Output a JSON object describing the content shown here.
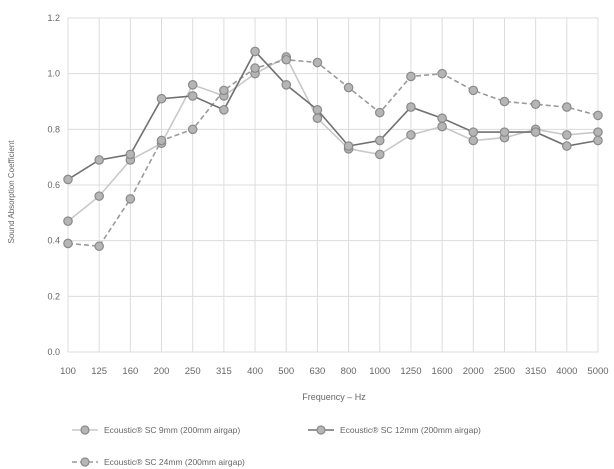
{
  "chart_data": {
    "type": "line",
    "title": "",
    "xlabel": "Frequency – Hz",
    "ylabel": "Sound Absorption Coefficient",
    "categories": [
      "100",
      "125",
      "160",
      "200",
      "250",
      "315",
      "400",
      "500",
      "630",
      "800",
      "1000",
      "1250",
      "1600",
      "2000",
      "2500",
      "3150",
      "4000",
      "5000"
    ],
    "y_ticks": [
      "0.0",
      "0.2",
      "0.4",
      "0.6",
      "0.8",
      "1.0",
      "1.2"
    ],
    "ylim": [
      0,
      1.2
    ],
    "grid": true,
    "legend_position": "bottom",
    "series": [
      {
        "name": "Ecoustic® SC 9mm (200mm airgap)",
        "style": "solid",
        "color": "#c8c8c8",
        "values": [
          0.47,
          0.56,
          0.69,
          0.75,
          0.96,
          0.92,
          1.0,
          1.06,
          0.84,
          0.73,
          0.71,
          0.78,
          0.81,
          0.76,
          0.77,
          0.8,
          0.78,
          0.79
        ]
      },
      {
        "name": "Ecoustic® SC 12mm (200mm airgap)",
        "style": "solid",
        "color": "#707070",
        "values": [
          0.62,
          0.69,
          0.71,
          0.91,
          0.92,
          0.87,
          1.08,
          0.96,
          0.87,
          0.74,
          0.76,
          0.88,
          0.84,
          0.79,
          0.79,
          0.79,
          0.74,
          0.76
        ]
      },
      {
        "name": "Ecoustic® SC 24mm (200mm airgap)",
        "style": "dashed",
        "color": "#9a9a9a",
        "values": [
          0.39,
          0.38,
          0.55,
          0.76,
          0.8,
          0.94,
          1.02,
          1.05,
          1.04,
          0.95,
          0.86,
          0.99,
          1.0,
          0.94,
          0.9,
          0.89,
          0.88,
          0.85
        ]
      }
    ]
  }
}
